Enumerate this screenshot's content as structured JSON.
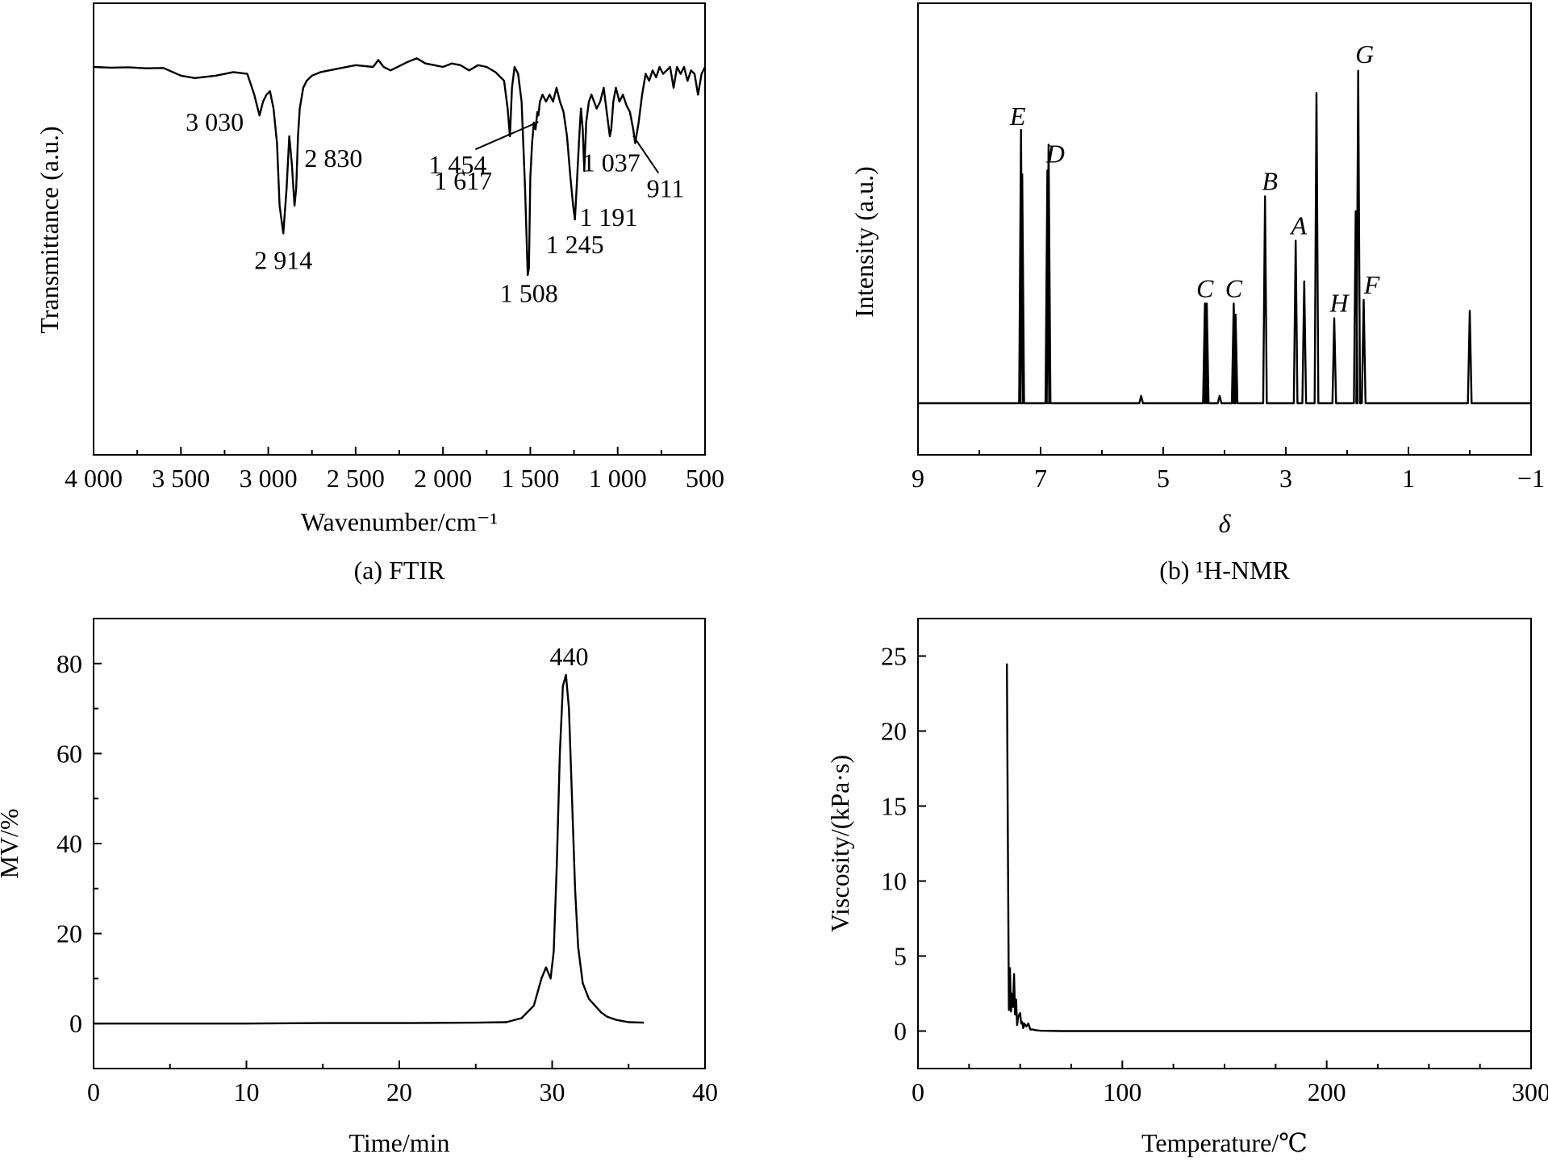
{
  "chart_data": [
    {
      "id": "ftir",
      "type": "line",
      "caption": "(a) FTIR",
      "xlabel": "Wavenumber/cm⁻¹",
      "ylabel": "Transmittance (a.u.)",
      "xlim": [
        4000,
        500
      ],
      "ylim": [
        0,
        100
      ],
      "x_reversed": true,
      "y_ticks_shown": false,
      "x_ticks": [
        4000,
        3500,
        3000,
        2500,
        2000,
        1500,
        1000,
        500
      ],
      "x_tick_labels": [
        "4 000",
        "3 500",
        "3 000",
        "2 500",
        "2 000",
        "1 500",
        "1 000",
        "500"
      ],
      "series": [
        {
          "x": [
            4000,
            3900,
            3800,
            3700,
            3600,
            3500,
            3420,
            3300,
            3200,
            3120,
            3080,
            3050,
            3030,
            3010,
            2990,
            2970,
            2950,
            2935,
            2914,
            2895,
            2880,
            2865,
            2850,
            2840,
            2830,
            2820,
            2800,
            2780,
            2750,
            2700,
            2600,
            2500,
            2400,
            2370,
            2340,
            2300,
            2200,
            2150,
            2100,
            2050,
            2000,
            1950,
            1900,
            1850,
            1800,
            1750,
            1700,
            1650,
            1630,
            1617,
            1605,
            1590,
            1570,
            1550,
            1530,
            1515,
            1508,
            1500,
            1490,
            1480,
            1470,
            1460,
            1454,
            1445,
            1430,
            1410,
            1390,
            1370,
            1350,
            1330,
            1310,
            1290,
            1270,
            1255,
            1245,
            1235,
            1220,
            1210,
            1200,
            1191,
            1180,
            1165,
            1150,
            1120,
            1100,
            1080,
            1060,
            1045,
            1037,
            1025,
            1010,
            990,
            970,
            950,
            930,
            911,
            900,
            880,
            860,
            840,
            820,
            800,
            780,
            760,
            740,
            720,
            700,
            680,
            660,
            640,
            620,
            600,
            580,
            560,
            540,
            520,
            500
          ],
          "y": [
            90,
            89.8,
            89.9,
            89.6,
            89.7,
            87.5,
            86.8,
            87.5,
            88.5,
            88,
            82,
            76,
            80,
            82,
            83,
            78,
            68,
            50,
            42,
            55,
            70,
            62,
            50,
            55,
            70,
            78,
            84,
            86,
            87.5,
            88.5,
            89.5,
            90.5,
            90,
            92,
            90,
            89,
            91.5,
            92.5,
            91,
            90.5,
            90,
            91,
            90.5,
            89,
            90.5,
            90,
            88.5,
            86,
            78,
            70,
            84,
            90,
            88,
            80,
            55,
            30,
            32,
            58,
            68,
            74,
            72,
            77,
            76,
            80,
            82,
            80,
            82,
            80,
            84,
            80,
            77,
            70,
            58,
            50,
            46,
            55,
            70,
            78,
            72,
            60,
            74,
            80,
            82,
            78,
            80,
            84,
            76,
            70,
            72,
            80,
            84,
            80,
            82,
            79,
            77,
            72,
            68,
            74,
            82,
            88,
            86,
            89,
            87,
            90,
            88,
            89,
            90,
            84,
            90,
            88,
            90,
            86,
            89,
            88,
            82,
            88,
            90
          ],
          "annotations": [
            {
              "text": "3 030",
              "x": 3030
            },
            {
              "text": "2 914",
              "x": 2914
            },
            {
              "text": "2 830",
              "x": 2830
            },
            {
              "text": "1 617",
              "x": 1617
            },
            {
              "text": "1 454",
              "x": 1454
            },
            {
              "text": "1 508",
              "x": 1508
            },
            {
              "text": "1 245",
              "x": 1245
            },
            {
              "text": "1 191",
              "x": 1191
            },
            {
              "text": "1 037",
              "x": 1037
            },
            {
              "text": "911",
              "x": 911
            }
          ]
        }
      ]
    },
    {
      "id": "nmr",
      "type": "line",
      "caption": "(b) ¹H-NMR",
      "xlabel": "δ",
      "ylabel": "Intensity (a.u.)",
      "xlim": [
        9,
        -1
      ],
      "ylim": [
        0,
        100
      ],
      "x_reversed": true,
      "y_ticks_shown": false,
      "x_ticks": [
        9,
        7,
        5,
        3,
        1,
        -1
      ],
      "x_tick_labels": [
        "9",
        "7",
        "5",
        "3",
        "1",
        "−1"
      ],
      "peaks": [
        {
          "x": 7.32,
          "height": 74,
          "label": "E"
        },
        {
          "x": 7.3,
          "height": 62,
          "label": ""
        },
        {
          "x": 6.89,
          "height": 63,
          "label": "D"
        },
        {
          "x": 6.87,
          "height": 70,
          "label": ""
        },
        {
          "x": 4.32,
          "height": 27,
          "label": "C"
        },
        {
          "x": 4.29,
          "height": 27,
          "label": ""
        },
        {
          "x": 3.85,
          "height": 27,
          "label": "C"
        },
        {
          "x": 3.82,
          "height": 24,
          "label": ""
        },
        {
          "x": 3.34,
          "height": 56,
          "label": "B"
        },
        {
          "x": 2.84,
          "height": 44,
          "label": "A"
        },
        {
          "x": 2.7,
          "height": 33,
          "label": ""
        },
        {
          "x": 2.5,
          "height": 84,
          "label": ""
        },
        {
          "x": 2.21,
          "height": 23,
          "label": "H"
        },
        {
          "x": 1.86,
          "height": 52,
          "label": ""
        },
        {
          "x": 1.82,
          "height": 90,
          "label": "G"
        },
        {
          "x": 1.73,
          "height": 28,
          "label": "F"
        },
        {
          "x": 5.36,
          "height": 2,
          "label": ""
        },
        {
          "x": 4.08,
          "height": 2,
          "label": ""
        },
        {
          "x": 0.0,
          "height": 25,
          "label": ""
        }
      ],
      "baseline": 0
    },
    {
      "id": "gpc",
      "type": "line",
      "caption": "",
      "xlabel": "Time/min",
      "ylabel": "MV/%",
      "xlim": [
        0,
        40
      ],
      "ylim": [
        -10,
        90
      ],
      "y_ticks": [
        0,
        20,
        40,
        60,
        80
      ],
      "x_ticks": [
        0,
        10,
        20,
        30,
        40
      ],
      "series": [
        {
          "x": [
            0,
            5,
            10,
            15,
            20,
            25,
            27,
            28,
            28.8,
            29.3,
            29.6,
            29.9,
            30.1,
            30.3,
            30.5,
            30.7,
            30.9,
            31.1,
            31.3,
            31.5,
            31.7,
            32,
            32.4,
            32.8,
            33.2,
            33.6,
            34.2,
            35,
            36
          ],
          "y": [
            0,
            0,
            0,
            0.1,
            0.1,
            0.2,
            0.3,
            1.2,
            4,
            10,
            12.5,
            10,
            16,
            35,
            60,
            75,
            77.5,
            70,
            50,
            30,
            17,
            9,
            5.5,
            4,
            2.5,
            1.5,
            0.8,
            0.3,
            0.2
          ]
        }
      ],
      "annotations": [
        {
          "text": "440",
          "x": 31
        }
      ]
    },
    {
      "id": "viscosity",
      "type": "line",
      "caption": "",
      "xlabel": "Temperature/℃",
      "ylabel": "Viscosity/(kPa·s)",
      "xlim": [
        0,
        300
      ],
      "ylim": [
        -2.5,
        27.5
      ],
      "y_ticks": [
        0,
        5,
        10,
        15,
        20,
        25
      ],
      "x_ticks": [
        0,
        100,
        200,
        300
      ],
      "series": [
        {
          "x": [
            43.5,
            44,
            44.5,
            45,
            45.5,
            46,
            46.5,
            47,
            47.5,
            48,
            48.5,
            49,
            49.5,
            50,
            50.5,
            51,
            51.5,
            52,
            53,
            54,
            55,
            56,
            58,
            60,
            70,
            100,
            150,
            200,
            250,
            300
          ],
          "y": [
            24.5,
            12,
            1.4,
            4.2,
            1.3,
            2.5,
            1.6,
            3.8,
            1.1,
            2.1,
            0.4,
            0.9,
            1.1,
            1.2,
            0.5,
            0.6,
            0.2,
            0.5,
            0.3,
            0.5,
            0.1,
            0.1,
            0.05,
            0.02,
            0,
            0,
            0,
            0,
            0,
            0
          ]
        }
      ]
    }
  ]
}
